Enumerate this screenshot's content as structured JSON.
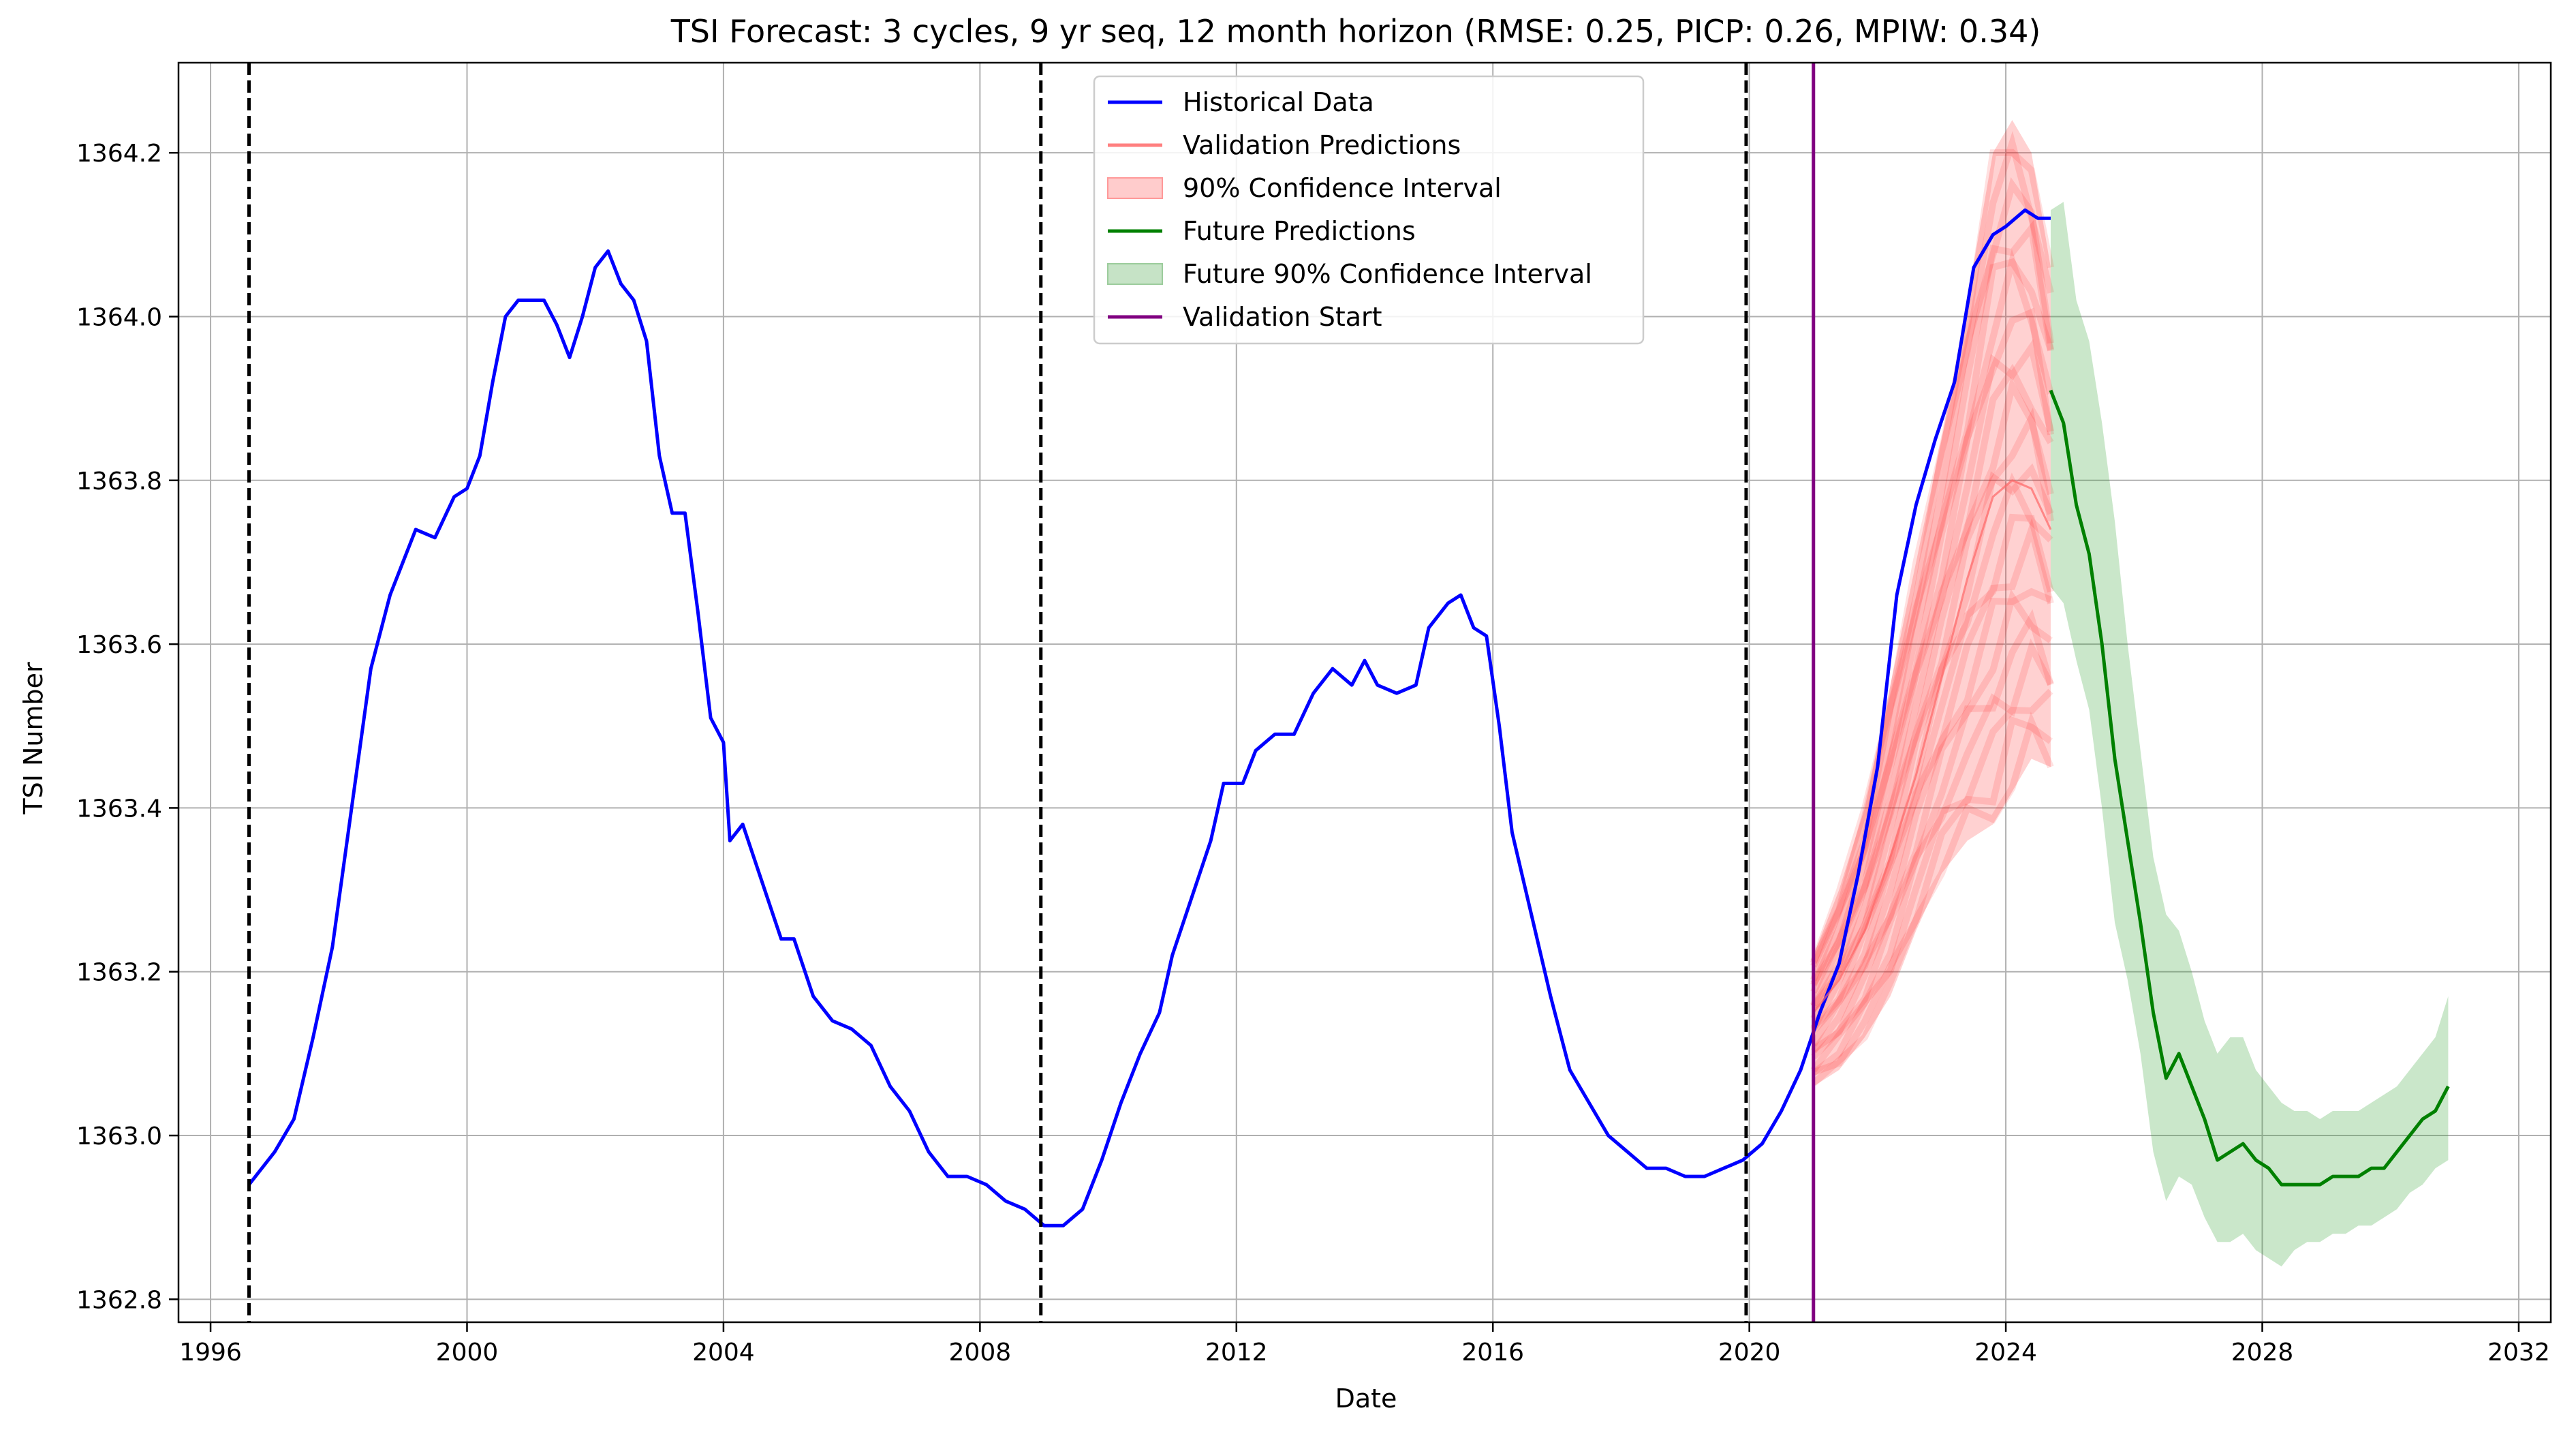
{
  "chart_data": {
    "type": "line",
    "title": "TSI Forecast: 3 cycles, 9 yr seq, 12 month horizon (RMSE: 0.25, PICP: 0.26, MPIW: 0.34)",
    "xlabel": "Date",
    "ylabel": "TSI Number",
    "xlim": [
      1995.5,
      2032.5
    ],
    "ylim": [
      1362.772,
      1364.31
    ],
    "x_ticks": [
      "1996",
      "2000",
      "2004",
      "2008",
      "2012",
      "2016",
      "2020",
      "2024",
      "2028",
      "2032"
    ],
    "y_ticks": [
      "1362.8",
      "1363.0",
      "1363.2",
      "1363.4",
      "1363.6",
      "1363.8",
      "1364.0",
      "1364.2"
    ],
    "grid": true,
    "legend_position": "top-center",
    "colors": {
      "historical": "#0000ff",
      "validation": "#ff0000",
      "validation_band": "#ff0000",
      "future": "#008000",
      "future_band": "#2ca02c",
      "validation_start": "#800080",
      "cycle_marker": "#000000",
      "grid": "#b0b0b0"
    },
    "legend": [
      {
        "label": "Historical Data",
        "kind": "line",
        "color": "#0000ff"
      },
      {
        "label": "Validation Predictions",
        "kind": "line",
        "color": "#ff8080"
      },
      {
        "label": "90% Confidence Interval",
        "kind": "band",
        "color": "#ffcccc",
        "edge": "#ff9999"
      },
      {
        "label": "Future Predictions",
        "kind": "line",
        "color": "#008000"
      },
      {
        "label": "Future 90% Confidence Interval",
        "kind": "band",
        "color": "#c6e3c6",
        "edge": "#9ccc9c"
      },
      {
        "label": "Validation Start",
        "kind": "line",
        "color": "#800080"
      }
    ],
    "cycle_markers_x": [
      1996.6,
      2008.95,
      2019.95
    ],
    "validation_start_x": 2021.0,
    "series": [
      {
        "name": "Historical Data",
        "points": [
          [
            1996.6,
            1362.94
          ],
          [
            1997.0,
            1362.98
          ],
          [
            1997.3,
            1363.02
          ],
          [
            1997.6,
            1363.12
          ],
          [
            1997.9,
            1363.23
          ],
          [
            1998.2,
            1363.4
          ],
          [
            1998.5,
            1363.57
          ],
          [
            1998.8,
            1363.66
          ],
          [
            1999.0,
            1363.7
          ],
          [
            1999.2,
            1363.74
          ],
          [
            1999.5,
            1363.73
          ],
          [
            1999.8,
            1363.78
          ],
          [
            2000.0,
            1363.79
          ],
          [
            2000.2,
            1363.83
          ],
          [
            2000.4,
            1363.92
          ],
          [
            2000.6,
            1364.0
          ],
          [
            2000.8,
            1364.02
          ],
          [
            2001.0,
            1364.02
          ],
          [
            2001.2,
            1364.02
          ],
          [
            2001.4,
            1363.99
          ],
          [
            2001.6,
            1363.95
          ],
          [
            2001.8,
            1364.0
          ],
          [
            2002.0,
            1364.06
          ],
          [
            2002.2,
            1364.08
          ],
          [
            2002.4,
            1364.04
          ],
          [
            2002.6,
            1364.02
          ],
          [
            2002.8,
            1363.97
          ],
          [
            2003.0,
            1363.83
          ],
          [
            2003.2,
            1363.76
          ],
          [
            2003.4,
            1363.76
          ],
          [
            2003.6,
            1363.64
          ],
          [
            2003.8,
            1363.51
          ],
          [
            2004.0,
            1363.48
          ],
          [
            2004.1,
            1363.36
          ],
          [
            2004.3,
            1363.38
          ],
          [
            2004.6,
            1363.31
          ],
          [
            2004.9,
            1363.24
          ],
          [
            2005.1,
            1363.24
          ],
          [
            2005.4,
            1363.17
          ],
          [
            2005.7,
            1363.14
          ],
          [
            2006.0,
            1363.13
          ],
          [
            2006.3,
            1363.11
          ],
          [
            2006.6,
            1363.06
          ],
          [
            2006.9,
            1363.03
          ],
          [
            2007.2,
            1362.98
          ],
          [
            2007.5,
            1362.95
          ],
          [
            2007.8,
            1362.95
          ],
          [
            2008.1,
            1362.94
          ],
          [
            2008.4,
            1362.92
          ],
          [
            2008.7,
            1362.91
          ],
          [
            2009.0,
            1362.89
          ],
          [
            2009.3,
            1362.89
          ],
          [
            2009.6,
            1362.91
          ],
          [
            2009.9,
            1362.97
          ],
          [
            2010.2,
            1363.04
          ],
          [
            2010.5,
            1363.1
          ],
          [
            2010.8,
            1363.15
          ],
          [
            2011.0,
            1363.22
          ],
          [
            2011.3,
            1363.29
          ],
          [
            2011.6,
            1363.36
          ],
          [
            2011.8,
            1363.43
          ],
          [
            2012.1,
            1363.43
          ],
          [
            2012.3,
            1363.47
          ],
          [
            2012.6,
            1363.49
          ],
          [
            2012.9,
            1363.49
          ],
          [
            2013.2,
            1363.54
          ],
          [
            2013.5,
            1363.57
          ],
          [
            2013.8,
            1363.55
          ],
          [
            2014.0,
            1363.58
          ],
          [
            2014.2,
            1363.55
          ],
          [
            2014.5,
            1363.54
          ],
          [
            2014.8,
            1363.55
          ],
          [
            2015.0,
            1363.62
          ],
          [
            2015.3,
            1363.65
          ],
          [
            2015.5,
            1363.66
          ],
          [
            2015.7,
            1363.62
          ],
          [
            2015.9,
            1363.61
          ],
          [
            2016.1,
            1363.5
          ],
          [
            2016.3,
            1363.37
          ],
          [
            2016.6,
            1363.27
          ],
          [
            2016.9,
            1363.17
          ],
          [
            2017.2,
            1363.08
          ],
          [
            2017.5,
            1363.04
          ],
          [
            2017.8,
            1363.0
          ],
          [
            2018.1,
            1362.98
          ],
          [
            2018.4,
            1362.96
          ],
          [
            2018.7,
            1362.96
          ],
          [
            2019.0,
            1362.95
          ],
          [
            2019.3,
            1362.95
          ],
          [
            2019.6,
            1362.96
          ],
          [
            2019.9,
            1362.97
          ],
          [
            2020.2,
            1362.99
          ],
          [
            2020.5,
            1363.03
          ],
          [
            2020.8,
            1363.08
          ],
          [
            2021.1,
            1363.15
          ],
          [
            2021.4,
            1363.21
          ],
          [
            2021.7,
            1363.32
          ],
          [
            2022.0,
            1363.45
          ],
          [
            2022.3,
            1363.66
          ],
          [
            2022.6,
            1363.77
          ],
          [
            2022.9,
            1363.85
          ],
          [
            2023.2,
            1363.92
          ],
          [
            2023.5,
            1364.06
          ],
          [
            2023.8,
            1364.1
          ],
          [
            2024.0,
            1364.11
          ],
          [
            2024.3,
            1364.13
          ],
          [
            2024.5,
            1364.12
          ],
          [
            2024.7,
            1364.12
          ]
        ]
      },
      {
        "name": "Validation Predictions",
        "points": [
          [
            2021.0,
            1363.15
          ],
          [
            2021.4,
            1363.19
          ],
          [
            2021.8,
            1363.25
          ],
          [
            2022.2,
            1363.34
          ],
          [
            2022.6,
            1363.44
          ],
          [
            2023.0,
            1363.56
          ],
          [
            2023.4,
            1363.68
          ],
          [
            2023.8,
            1363.78
          ],
          [
            2024.1,
            1363.8
          ],
          [
            2024.4,
            1363.79
          ],
          [
            2024.7,
            1363.74
          ]
        ]
      },
      {
        "name": "Future Predictions",
        "points": [
          [
            2024.7,
            1363.91
          ],
          [
            2024.9,
            1363.87
          ],
          [
            2025.1,
            1363.77
          ],
          [
            2025.3,
            1363.71
          ],
          [
            2025.5,
            1363.6
          ],
          [
            2025.7,
            1363.46
          ],
          [
            2025.9,
            1363.36
          ],
          [
            2026.1,
            1363.26
          ],
          [
            2026.3,
            1363.15
          ],
          [
            2026.5,
            1363.07
          ],
          [
            2026.7,
            1363.1
          ],
          [
            2026.9,
            1363.06
          ],
          [
            2027.1,
            1363.02
          ],
          [
            2027.3,
            1362.97
          ],
          [
            2027.5,
            1362.98
          ],
          [
            2027.7,
            1362.99
          ],
          [
            2027.9,
            1362.97
          ],
          [
            2028.1,
            1362.96
          ],
          [
            2028.3,
            1362.94
          ],
          [
            2028.5,
            1362.94
          ],
          [
            2028.7,
            1362.94
          ],
          [
            2028.9,
            1362.94
          ],
          [
            2029.1,
            1362.95
          ],
          [
            2029.3,
            1362.95
          ],
          [
            2029.5,
            1362.95
          ],
          [
            2029.7,
            1362.96
          ],
          [
            2029.9,
            1362.96
          ],
          [
            2030.1,
            1362.98
          ],
          [
            2030.3,
            1363.0
          ],
          [
            2030.5,
            1363.02
          ],
          [
            2030.7,
            1363.03
          ],
          [
            2030.9,
            1363.06
          ]
        ]
      }
    ],
    "bands": [
      {
        "name": "90% Confidence Interval",
        "points": [
          [
            2021.0,
            1363.06,
            1363.22
          ],
          [
            2021.4,
            1363.08,
            1363.3
          ],
          [
            2021.8,
            1363.12,
            1363.4
          ],
          [
            2022.2,
            1363.17,
            1363.55
          ],
          [
            2022.6,
            1363.25,
            1363.7
          ],
          [
            2023.0,
            1363.32,
            1363.85
          ],
          [
            2023.4,
            1363.36,
            1364.02
          ],
          [
            2023.8,
            1363.38,
            1364.2
          ],
          [
            2024.1,
            1363.42,
            1364.24
          ],
          [
            2024.4,
            1363.46,
            1364.2
          ],
          [
            2024.7,
            1363.45,
            1364.06
          ]
        ]
      },
      {
        "name": "Future 90% Confidence Interval",
        "points": [
          [
            2024.7,
            1363.67,
            1364.13
          ],
          [
            2024.9,
            1363.65,
            1364.14
          ],
          [
            2025.1,
            1363.58,
            1364.02
          ],
          [
            2025.3,
            1363.52,
            1363.97
          ],
          [
            2025.5,
            1363.4,
            1363.87
          ],
          [
            2025.7,
            1363.26,
            1363.75
          ],
          [
            2025.9,
            1363.19,
            1363.6
          ],
          [
            2026.1,
            1363.1,
            1363.47
          ],
          [
            2026.3,
            1362.98,
            1363.34
          ],
          [
            2026.5,
            1362.92,
            1363.27
          ],
          [
            2026.7,
            1362.95,
            1363.25
          ],
          [
            2026.9,
            1362.94,
            1363.2
          ],
          [
            2027.1,
            1362.9,
            1363.14
          ],
          [
            2027.3,
            1362.87,
            1363.1
          ],
          [
            2027.5,
            1362.87,
            1363.12
          ],
          [
            2027.7,
            1362.88,
            1363.12
          ],
          [
            2027.9,
            1362.86,
            1363.08
          ],
          [
            2028.1,
            1362.85,
            1363.06
          ],
          [
            2028.3,
            1362.84,
            1363.04
          ],
          [
            2028.5,
            1362.86,
            1363.03
          ],
          [
            2028.7,
            1362.87,
            1363.03
          ],
          [
            2028.9,
            1362.87,
            1363.02
          ],
          [
            2029.1,
            1362.88,
            1363.03
          ],
          [
            2029.3,
            1362.88,
            1363.03
          ],
          [
            2029.5,
            1362.89,
            1363.03
          ],
          [
            2029.7,
            1362.89,
            1363.04
          ],
          [
            2029.9,
            1362.9,
            1363.05
          ],
          [
            2030.1,
            1362.91,
            1363.06
          ],
          [
            2030.3,
            1362.93,
            1363.08
          ],
          [
            2030.5,
            1362.94,
            1363.1
          ],
          [
            2030.7,
            1362.96,
            1363.12
          ],
          [
            2030.9,
            1362.97,
            1363.17
          ]
        ]
      }
    ]
  }
}
